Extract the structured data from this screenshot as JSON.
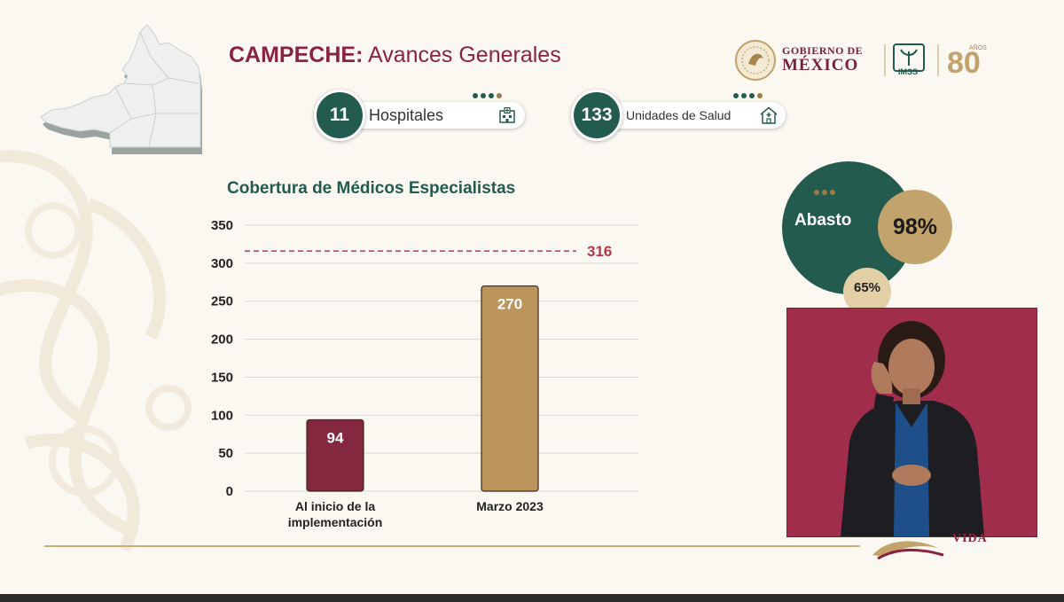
{
  "header": {
    "title_bold": "CAMPECHE:",
    "title_rest": " Avances Generales",
    "gobierno_line1": "GOBIERNO DE",
    "gobierno_line2": "MÉXICO",
    "imss": "IMSS",
    "anniversary": "80",
    "anniversary_small": "AÑOS"
  },
  "kpis": [
    {
      "value": "11",
      "label": "Hospitales",
      "icon": "hospital-icon"
    },
    {
      "value": "133",
      "label": "Unidades de Salud",
      "icon": "health-unit-icon"
    }
  ],
  "abasto": {
    "label": "Abasto",
    "value": "98%",
    "secondary": "65%"
  },
  "footer": {
    "vida": "VIDA"
  },
  "colors": {
    "guinda": "#8a2340",
    "green": "#235b4e",
    "gold": "#c2a36b",
    "bar1": "#84283f",
    "bar2": "#bc955c",
    "target_line": "#b23a48"
  },
  "chart_data": {
    "type": "bar",
    "title": "Cobertura de Médicos Especialistas",
    "categories": [
      [
        "Al inicio de la",
        "implementación"
      ],
      [
        "Marzo 2023"
      ]
    ],
    "values": [
      94,
      270
    ],
    "data_labels": [
      "94",
      "270"
    ],
    "ylim": [
      0,
      350
    ],
    "yticks": [
      0,
      50,
      100,
      150,
      200,
      250,
      300,
      350
    ],
    "grid": true,
    "target_line": {
      "value": 316,
      "label": "316"
    }
  }
}
